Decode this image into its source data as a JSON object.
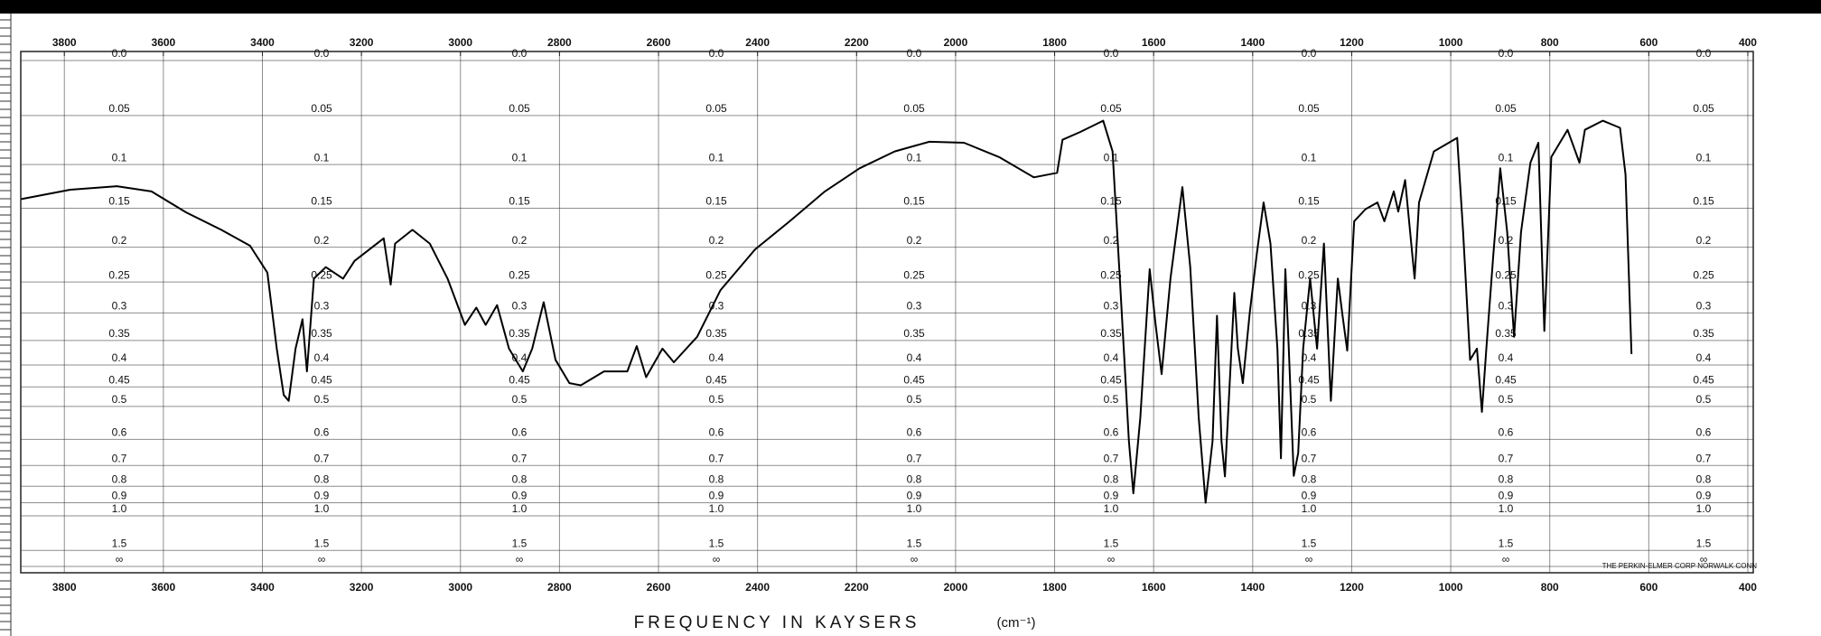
{
  "chart_data": {
    "type": "line",
    "x_label": "FREQUENCY IN KAYSERS",
    "x_unit": "(cm⁻¹)",
    "annotation": "THE PERKIN-ELMER CORP NORWALK CONN",
    "y_scale": "absorbance",
    "xlim": [
      3888,
      389
    ],
    "ylim": [
      0,
      null
    ],
    "xticks": [
      3800,
      3600,
      3400,
      3200,
      3000,
      2800,
      2600,
      2400,
      2200,
      2000,
      1800,
      1600,
      1400,
      1200,
      1000,
      800,
      600,
      400
    ],
    "yticks": [
      {
        "value": 0,
        "label": "0.0"
      },
      0.05,
      0.1,
      0.15,
      0.2,
      0.25,
      0.3,
      0.35,
      0.4,
      0.45,
      0.5,
      0.6,
      0.7,
      0.8,
      0.9,
      {
        "value": 1,
        "label": "1.0"
      },
      1.5,
      {
        "value": null,
        "label": "∞"
      }
    ],
    "grid": true,
    "series": [
      {
        "color": "#000000",
        "x": [
          3887,
          3788,
          3694,
          3624,
          3554,
          3483,
          3425,
          3390,
          3371,
          3357,
          3347,
          3333,
          3319,
          3310,
          3296,
          3272,
          3237,
          3214,
          3155,
          3141,
          3132,
          3097,
          3062,
          3026,
          2991,
          2968,
          2949,
          2926,
          2902,
          2874,
          2855,
          2832,
          2808,
          2780,
          2757,
          2710,
          2663,
          2644,
          2625,
          2592,
          2569,
          2522,
          2475,
          2405,
          2335,
          2264,
          2194,
          2123,
          2053,
          1983,
          1912,
          1842,
          1795,
          1784,
          1748,
          1702,
          1683,
          1667,
          1650,
          1641,
          1627,
          1608,
          1596,
          1584,
          1566,
          1542,
          1526,
          1509,
          1495,
          1481,
          1472,
          1463,
          1456,
          1444,
          1437,
          1430,
          1420,
          1406,
          1392,
          1378,
          1364,
          1350,
          1343,
          1334,
          1327,
          1317,
          1308,
          1298,
          1284,
          1270,
          1256,
          1242,
          1228,
          1219,
          1209,
          1195,
          1172,
          1148,
          1134,
          1115,
          1106,
          1092,
          1073,
          1064,
          1034,
          987,
          975,
          961,
          947,
          937,
          928,
          914,
          900,
          886,
          872,
          858,
          839,
          823,
          811,
          797,
          764,
          740,
          729,
          693,
          658,
          647,
          635
        ],
        "values": [
          0.139,
          0.128,
          0.124,
          0.13,
          0.155,
          0.177,
          0.198,
          0.236,
          0.366,
          0.47,
          0.485,
          0.366,
          0.311,
          0.414,
          0.245,
          0.228,
          0.245,
          0.219,
          0.188,
          0.254,
          0.195,
          0.177,
          0.195,
          0.245,
          0.321,
          0.291,
          0.321,
          0.287,
          0.366,
          0.414,
          0.366,
          0.282,
          0.389,
          0.441,
          0.446,
          0.414,
          0.414,
          0.361,
          0.427,
          0.366,
          0.394,
          0.343,
          0.263,
          0.203,
          0.166,
          0.13,
          0.104,
          0.086,
          0.076,
          0.077,
          0.092,
          0.114,
          0.109,
          0.074,
          0.066,
          0.055,
          0.086,
          0.263,
          0.606,
          0.84,
          0.532,
          0.231,
          0.321,
          0.42,
          0.245,
          0.125,
          0.228,
          0.532,
          0.9,
          0.606,
          0.305,
          0.606,
          0.75,
          0.389,
          0.267,
          0.366,
          0.441,
          0.301,
          0.211,
          0.143,
          0.195,
          0.366,
          0.67,
          0.231,
          0.366,
          0.747,
          0.65,
          0.366,
          0.245,
          0.366,
          0.195,
          0.485,
          0.245,
          0.301,
          0.37,
          0.166,
          0.151,
          0.143,
          0.166,
          0.13,
          0.154,
          0.117,
          0.245,
          0.143,
          0.086,
          0.072,
          0.18,
          0.389,
          0.366,
          0.515,
          0.366,
          0.211,
          0.104,
          0.18,
          0.343,
          0.18,
          0.098,
          0.077,
          0.332,
          0.092,
          0.064,
          0.098,
          0.064,
          0.055,
          0.062,
          0.111,
          0.377
        ]
      }
    ]
  }
}
